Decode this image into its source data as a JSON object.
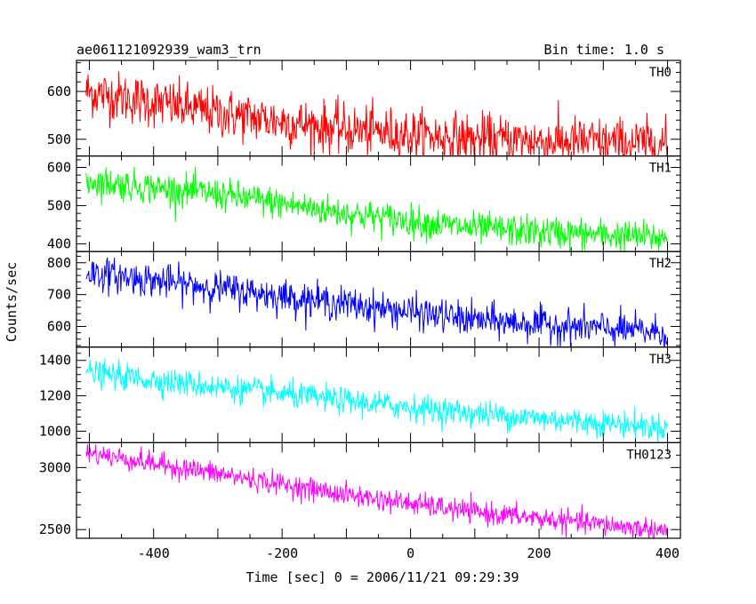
{
  "header": {
    "left_title": "ae061121092939_wam3_trn",
    "right_title": "Bin time: 1.0 s"
  },
  "axes": {
    "xlabel": "Time [sec] 0 = 2006/11/21 09:29:39",
    "ylabel": "Counts/sec"
  },
  "chart_data": {
    "type": "line",
    "title": "ae061121092939_wam3_trn",
    "subtitle": "Bin time: 1.0 s",
    "xlabel": "Time [sec] 0 = 2006/11/21 09:29:39",
    "ylabel": "Counts/sec",
    "xlim": [
      -520,
      420
    ],
    "x_ticks": [
      -400,
      -200,
      0,
      200,
      400
    ],
    "x_range": [
      -505,
      400
    ],
    "bin_time_s": 1.0,
    "grid": false,
    "legend": "none",
    "panels": [
      {
        "name": "TH0",
        "color": "#ff0000",
        "ylim": [
          465,
          665
        ],
        "y_ticks": [
          500,
          600
        ],
        "trend_points": [
          [
            -505,
            600
          ],
          [
            -300,
            555
          ],
          [
            -100,
            520
          ],
          [
            100,
            500
          ],
          [
            400,
            490
          ]
        ],
        "noise_amplitude": 35
      },
      {
        "name": "TH1",
        "color": "#00ff00",
        "ylim": [
          380,
          630
        ],
        "y_ticks": [
          400,
          500,
          600
        ],
        "trend_points": [
          [
            -505,
            565
          ],
          [
            -300,
            530
          ],
          [
            -100,
            480
          ],
          [
            100,
            440
          ],
          [
            400,
            415
          ]
        ],
        "noise_amplitude": 28
      },
      {
        "name": "TH2",
        "color": "#0000ff",
        "ylim": [
          535,
          835
        ],
        "y_ticks": [
          600,
          700,
          800
        ],
        "trend_points": [
          [
            -505,
            770
          ],
          [
            -300,
            720
          ],
          [
            -100,
            670
          ],
          [
            100,
            620
          ],
          [
            400,
            580
          ]
        ],
        "noise_amplitude": 35
      },
      {
        "name": "TH3",
        "color": "#00ffff",
        "ylim": [
          935,
          1475
        ],
        "y_ticks": [
          1000,
          1200,
          1400
        ],
        "trend_points": [
          [
            -505,
            1330
          ],
          [
            -300,
            1250
          ],
          [
            -100,
            1170
          ],
          [
            100,
            1100
          ],
          [
            400,
            1020
          ]
        ],
        "noise_amplitude": 50
      },
      {
        "name": "TH0123",
        "color": "#ff00ff",
        "ylim": [
          2430,
          3200
        ],
        "y_ticks": [
          2500,
          3000
        ],
        "trend_points": [
          [
            -505,
            3120
          ],
          [
            -300,
            2950
          ],
          [
            -100,
            2780
          ],
          [
            100,
            2640
          ],
          [
            400,
            2490
          ]
        ],
        "noise_amplitude": 60
      }
    ]
  }
}
